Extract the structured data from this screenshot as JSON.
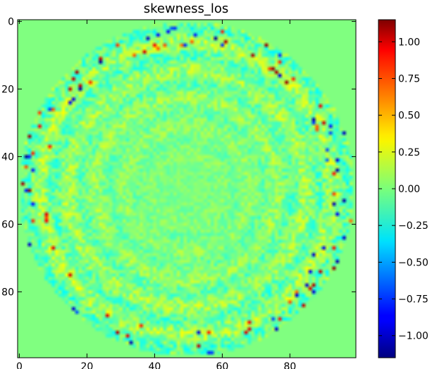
{
  "chart_data": {
    "type": "heatmap",
    "title": "skewness_los",
    "xlabel": "",
    "ylabel": "",
    "grid": false,
    "x_range": [
      0,
      99
    ],
    "y_range": [
      0,
      99
    ],
    "y_axis_inverted": true,
    "x_ticks": [
      0,
      20,
      40,
      60,
      80
    ],
    "x_tick_labels": [
      "0",
      "20",
      "40",
      "60",
      "80"
    ],
    "y_ticks": [
      0,
      20,
      40,
      60,
      80
    ],
    "y_tick_labels": [
      "0",
      "20",
      "40",
      "60",
      "80"
    ],
    "value_range": [
      -1.15,
      1.15
    ],
    "colormap": "jet",
    "colorbar": {
      "placement": "right",
      "ticks": [
        1.0,
        0.75,
        0.5,
        0.25,
        0.0,
        -0.25,
        -0.5,
        -0.75,
        -1.0
      ],
      "tick_labels": [
        "1.00",
        "0.75",
        "0.50",
        "0.25",
        "0.00",
        "−0.25",
        "−0.50",
        "−0.75",
        "−1.00"
      ]
    },
    "field_description_values": {
      "background_value": 0.0,
      "disk_center": [
        49.5,
        49.5
      ],
      "disk_radius": 49.5,
      "noise_amplitude": 0.15,
      "ring_count": 6
    }
  }
}
